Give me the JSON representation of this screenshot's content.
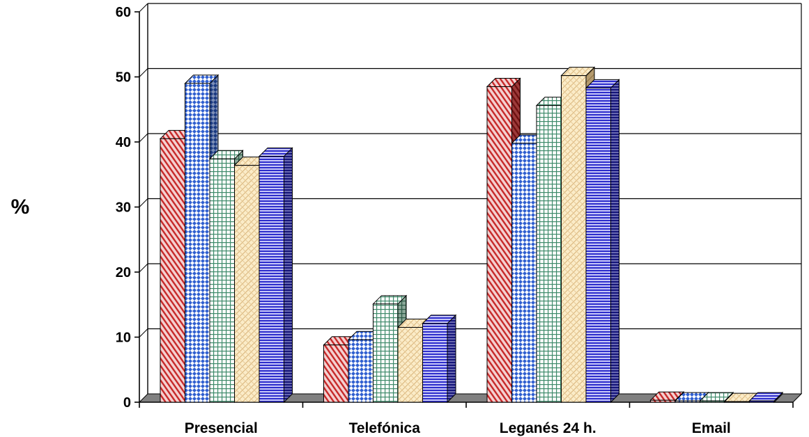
{
  "chart_data": {
    "type": "bar",
    "style": "3d-clustered-column",
    "title": "",
    "xlabel": "",
    "ylabel": "%",
    "ylim": [
      0,
      60
    ],
    "yticks": [
      "0",
      "10",
      "20",
      "30",
      "40",
      "50",
      "60"
    ],
    "grid": true,
    "legend": "none",
    "categories": [
      "Presencial",
      "Telefónica",
      "Leganés 24 h.",
      "Email"
    ],
    "series": [
      {
        "color": "#c0392b",
        "pattern": "diagonal-red",
        "values": [
          40.5,
          8.8,
          48.5,
          0.3
        ]
      },
      {
        "color": "#2f5fd0",
        "pattern": "diamond-blue",
        "values": [
          49.0,
          9.6,
          39.8,
          0.2
        ]
      },
      {
        "color": "#4a9a7a",
        "pattern": "grid-green",
        "values": [
          37.4,
          15.1,
          45.6,
          0.2
        ]
      },
      {
        "color": "#c8a060",
        "pattern": "weave-tan",
        "values": [
          36.4,
          11.5,
          50.2,
          0.1
        ]
      },
      {
        "color": "#2d2dcc",
        "pattern": "hlines-blue",
        "values": [
          37.8,
          12.1,
          48.3,
          0.2
        ]
      }
    ]
  }
}
